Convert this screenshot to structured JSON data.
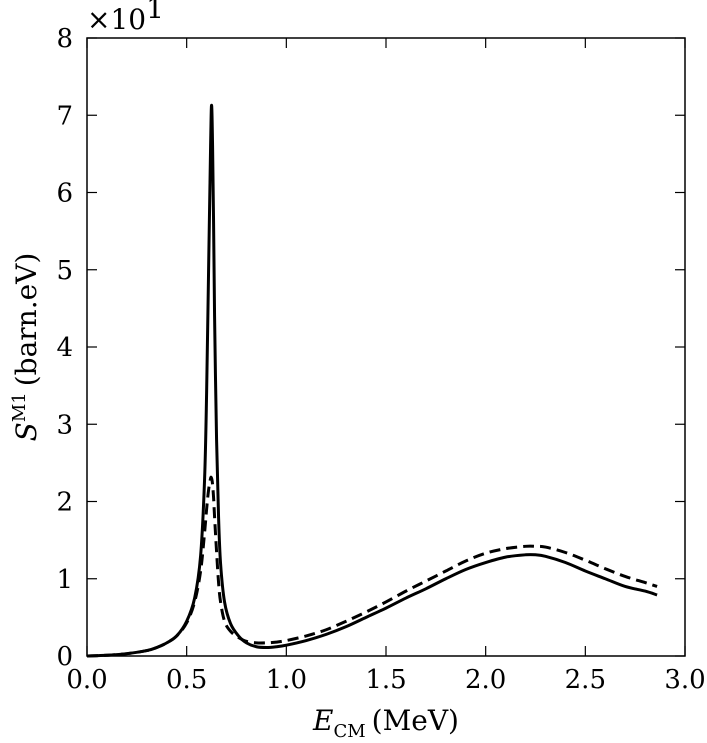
{
  "chart_data": {
    "type": "line",
    "xlabel": "E_CM (MeV)",
    "xlabel_main": "E",
    "xlabel_sub": "CM",
    "xlabel_unit": "(MeV)",
    "ylabel": "S^M1 (barn.eV)",
    "ylabel_main": "S",
    "ylabel_sup": "M1",
    "ylabel_unit": "(barn.eV)",
    "y_multiplier": "×10",
    "y_multiplier_exp": "1",
    "xlim": [
      0.0,
      3.0
    ],
    "ylim": [
      0,
      8
    ],
    "x_ticks": [
      "0.0",
      "0.5",
      "1.0",
      "1.5",
      "2.0",
      "2.5",
      "3.0"
    ],
    "x_tick_values": [
      0.0,
      0.5,
      1.0,
      1.5,
      2.0,
      2.5,
      3.0
    ],
    "y_ticks": [
      "0",
      "1",
      "2",
      "3",
      "4",
      "5",
      "6",
      "7",
      "8"
    ],
    "y_tick_values": [
      0,
      1,
      2,
      3,
      4,
      5,
      6,
      7,
      8
    ],
    "grid": false,
    "legend": "none",
    "series": [
      {
        "style": "solid",
        "color": "#000000",
        "x": [
          0.0,
          0.1,
          0.2,
          0.3,
          0.35,
          0.4,
          0.45,
          0.5,
          0.54,
          0.57,
          0.59,
          0.6,
          0.61,
          0.62,
          0.625,
          0.63,
          0.635,
          0.64,
          0.65,
          0.66,
          0.67,
          0.69,
          0.72,
          0.76,
          0.8,
          0.85,
          0.9,
          0.95,
          1.0,
          1.1,
          1.2,
          1.3,
          1.4,
          1.5,
          1.6,
          1.7,
          1.8,
          1.9,
          2.0,
          2.1,
          2.2,
          2.25,
          2.3,
          2.4,
          2.5,
          2.6,
          2.7,
          2.8,
          2.86
        ],
        "y": [
          0.0,
          0.01,
          0.03,
          0.07,
          0.11,
          0.17,
          0.26,
          0.45,
          0.75,
          1.3,
          2.3,
          3.4,
          5.0,
          6.6,
          7.13,
          6.6,
          5.6,
          4.4,
          2.8,
          1.8,
          1.2,
          0.7,
          0.42,
          0.26,
          0.17,
          0.12,
          0.11,
          0.12,
          0.14,
          0.2,
          0.28,
          0.38,
          0.5,
          0.62,
          0.75,
          0.87,
          1.0,
          1.12,
          1.21,
          1.28,
          1.31,
          1.31,
          1.29,
          1.21,
          1.1,
          1.0,
          0.9,
          0.84,
          0.79
        ]
      },
      {
        "style": "dashed",
        "color": "#000000",
        "x": [
          0.0,
          0.1,
          0.2,
          0.3,
          0.35,
          0.4,
          0.45,
          0.5,
          0.54,
          0.57,
          0.59,
          0.6,
          0.61,
          0.62,
          0.625,
          0.63,
          0.635,
          0.64,
          0.65,
          0.66,
          0.67,
          0.69,
          0.72,
          0.76,
          0.8,
          0.85,
          0.9,
          0.95,
          1.0,
          1.1,
          1.2,
          1.3,
          1.4,
          1.5,
          1.6,
          1.7,
          1.8,
          1.9,
          2.0,
          2.1,
          2.2,
          2.25,
          2.3,
          2.4,
          2.5,
          2.6,
          2.7,
          2.8,
          2.86
        ],
        "y": [
          0.0,
          0.01,
          0.03,
          0.07,
          0.11,
          0.17,
          0.26,
          0.43,
          0.7,
          1.1,
          1.6,
          1.9,
          2.15,
          2.3,
          2.3,
          2.22,
          2.05,
          1.8,
          1.35,
          0.95,
          0.7,
          0.45,
          0.32,
          0.24,
          0.19,
          0.17,
          0.17,
          0.18,
          0.2,
          0.26,
          0.34,
          0.45,
          0.57,
          0.7,
          0.84,
          0.97,
          1.1,
          1.23,
          1.33,
          1.39,
          1.42,
          1.42,
          1.41,
          1.34,
          1.24,
          1.13,
          1.03,
          0.95,
          0.9
        ]
      }
    ]
  }
}
